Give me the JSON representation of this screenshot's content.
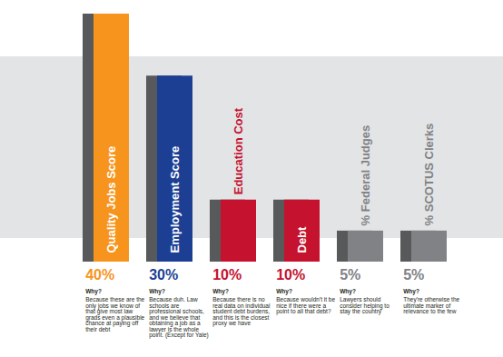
{
  "chart_data": {
    "type": "bar",
    "categories": [
      "Quality Jobs Score",
      "Employment Score",
      "Education Cost",
      "Debt",
      "% Federal Judges",
      "% SCOTUS Clerks"
    ],
    "values": [
      40,
      30,
      10,
      10,
      5,
      5
    ],
    "value_labels": [
      "40%",
      "30%",
      "10%",
      "10%",
      "5%",
      "5%"
    ],
    "colors": [
      "#f7941d",
      "#1c3f94",
      "#c4122f",
      "#c4122f",
      "#808285",
      "#808285"
    ],
    "ylim": [
      0,
      40
    ],
    "tick_labels": false,
    "data_labels": true,
    "annotations": [
      {
        "heading": "Why?",
        "text": "Because these are the only jobs we know of that give most law grads even a plausible chance at paying off their debt"
      },
      {
        "heading": "Why?",
        "text": "Because duh. Law schools are professional schools, and we believe that obtaining a job as a lawyer is the whole point. (Except for Yale)"
      },
      {
        "heading": "Why?",
        "text": "Because there is no real data on individual student debt burdens, and this is the closest proxy we have"
      },
      {
        "heading": "Why?",
        "text": "Because wouldn't it be nice if there were a point to all that debt?"
      },
      {
        "heading": "Why?",
        "text": "Lawyers should consider helping to stay the country"
      },
      {
        "heading": "Why?",
        "text": "They're otherwise the ultimate marker of relevance to the few"
      }
    ]
  }
}
